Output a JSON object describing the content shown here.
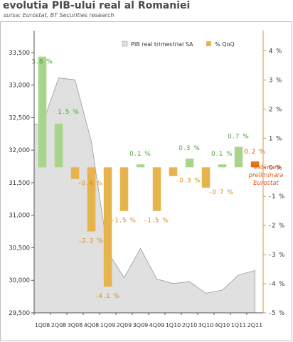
{
  "title": "evolutia PIB-ului real al Romaniei",
  "subtitle": "sursa: Eurostat, BT Securities research",
  "chart_data": {
    "type": "bar",
    "categories": [
      "1Q08",
      "2Q08",
      "3Q08",
      "4Q08",
      "1Q09",
      "2Q09",
      "3Q09",
      "4Q09",
      "1Q10",
      "2Q10",
      "3Q10",
      "4Q10",
      "1Q11",
      "2Q11"
    ],
    "series": [
      {
        "name": "PIB real trimestrial SA",
        "type": "area",
        "axis": "left",
        "color": "#e0e0e0",
        "values": [
          32400,
          33110,
          33080,
          32130,
          30440,
          30040,
          30490,
          30020,
          29950,
          29980,
          29800,
          29850,
          30080,
          30150
        ]
      },
      {
        "name": "% QoQ",
        "type": "bar",
        "axis": "right",
        "color": "#e6b34d",
        "positive_color": "#a8d58b",
        "estimate_color": "#e8730f",
        "values": [
          3.8,
          1.5,
          -0.4,
          -2.2,
          -4.1,
          -1.5,
          0.1,
          -1.5,
          -0.3,
          0.3,
          -0.7,
          0.1,
          0.7,
          0.2
        ],
        "data_labels": [
          "3.8%",
          "1.5%",
          "-0.4%",
          "-2.2%",
          "-4.1%",
          "-1.5%",
          "0.1%",
          "-1.5%",
          "-0.3%",
          "0.3%",
          "-0.7%",
          "0.1%",
          "0.7%",
          "0.2%"
        ],
        "estimate_index": 13
      }
    ],
    "y_left": {
      "ylim": [
        29500,
        33750
      ],
      "ticks": [
        "29,500",
        "30,000",
        "30,500",
        "31,000",
        "31,500",
        "32,000",
        "32,500",
        "33,000",
        "33,500"
      ]
    },
    "y_right": {
      "ylim": [
        -5,
        4.5
      ],
      "ticks": [
        "-5%",
        "-4%",
        "-3%",
        "-2%",
        "-1%",
        "0%",
        "1%",
        "2%",
        "3%",
        "4%"
      ]
    },
    "annotation": [
      "*estimare",
      "preliminara",
      "Eurostat"
    ],
    "legend_position": "top-center",
    "grid": false
  }
}
